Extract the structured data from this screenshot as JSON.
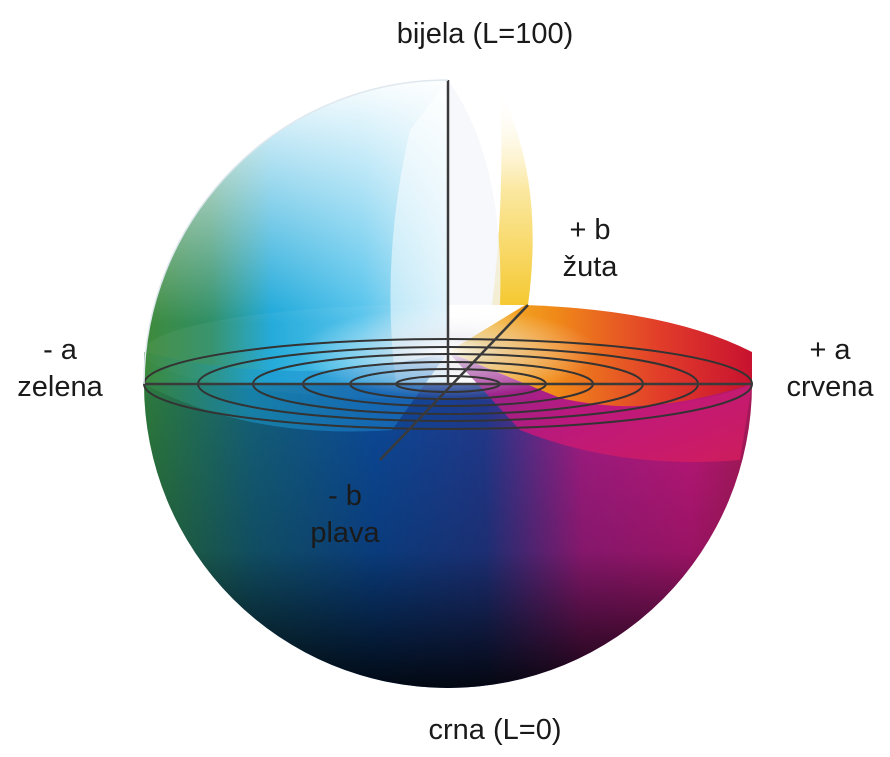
{
  "labels": {
    "white": {
      "text": "bijela (L=100)"
    },
    "black": {
      "text": "crna (L=0)"
    },
    "pos_b": {
      "sign": "+ b",
      "name": "žuta"
    },
    "neg_a": {
      "sign": "- a",
      "name": "zelena"
    },
    "pos_a": {
      "sign": "+ a",
      "name": "crvena"
    },
    "neg_b": {
      "sign": "- b",
      "name": "plava"
    }
  },
  "colors": {
    "green": "#3f8a3a",
    "cyan": "#1aa7d9",
    "blue": "#0c3f86",
    "magenta": "#c0187d",
    "red": "#d0222f",
    "orange": "#f08a18",
    "yellow": "#f5c932",
    "white": "#ffffff",
    "black": "#111111",
    "gridline": "#333333"
  }
}
